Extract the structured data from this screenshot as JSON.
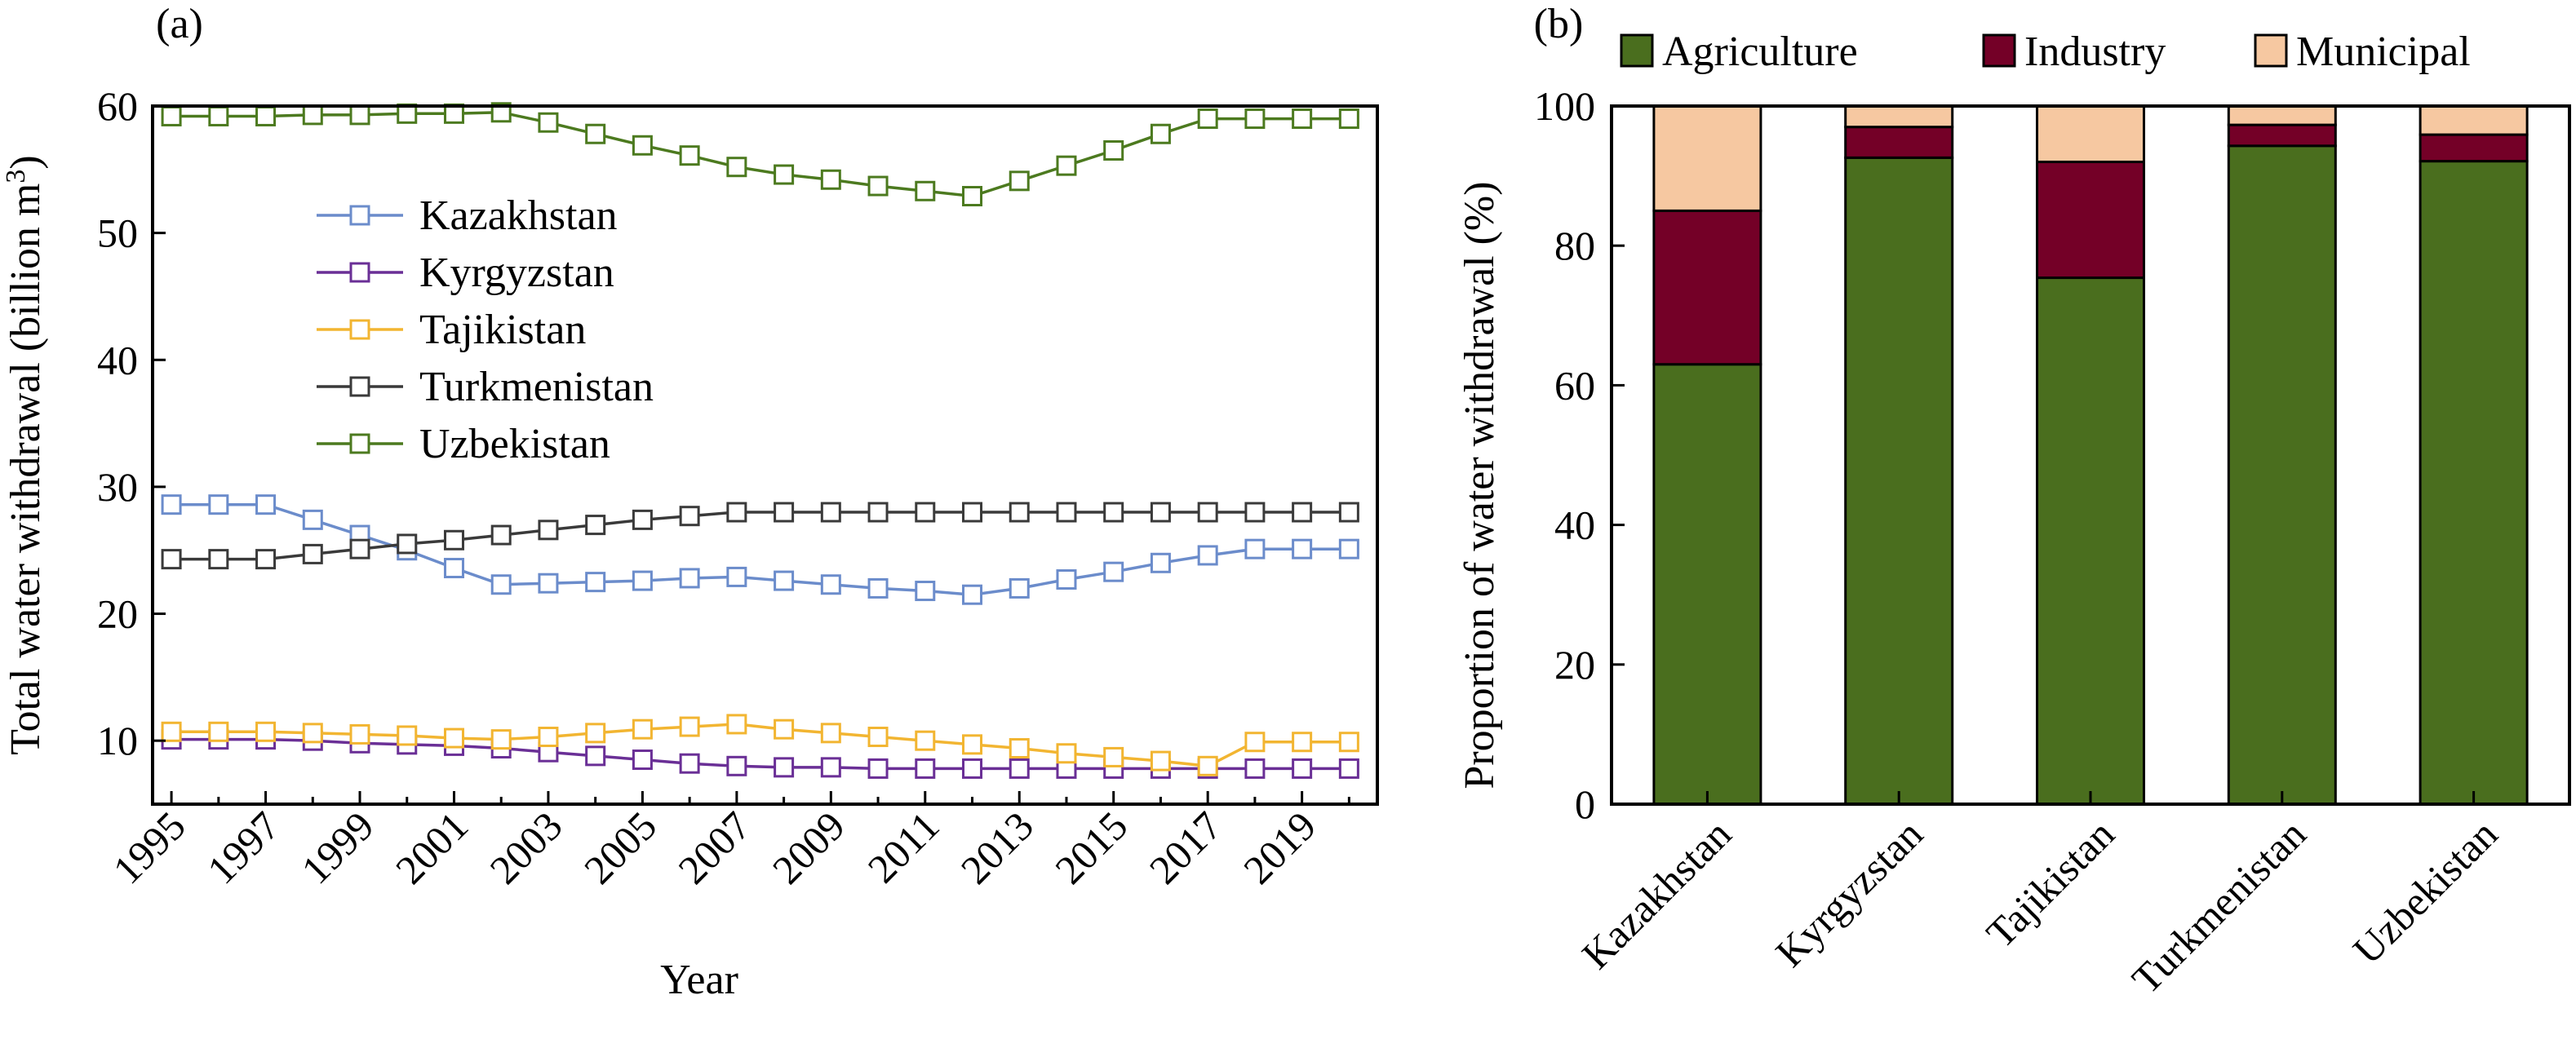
{
  "chart_data": [
    {
      "panel_label": "(a)",
      "type": "line",
      "xlabel": "Year",
      "ylabel": "Total water withdrawal (billion m³)",
      "ylabel_main": "Total water withdrawal (billion m",
      "ylabel_sup": "3",
      "ylabel_close": ")",
      "xlim": [
        1994.6,
        2020.6
      ],
      "ylim": [
        5,
        60
      ],
      "yticks": [
        10,
        20,
        30,
        40,
        50,
        60
      ],
      "xticks": [
        1995,
        1997,
        1999,
        2001,
        2003,
        2005,
        2007,
        2009,
        2011,
        2013,
        2015,
        2017,
        2019
      ],
      "xtick_labels": [
        "1995",
        "1997",
        "1999",
        "2001",
        "2003",
        "2005",
        "2007",
        "2009",
        "2011",
        "2013",
        "2015",
        "2017",
        "2019"
      ],
      "ytick_labels": [
        "10",
        "20",
        "30",
        "40",
        "50",
        "60"
      ],
      "marker": "open-square",
      "legend_placement": "upper-center",
      "grid": false,
      "x": [
        1995,
        1996,
        1997,
        1998,
        1999,
        2000,
        2001,
        2002,
        2003,
        2004,
        2005,
        2006,
        2007,
        2008,
        2009,
        2010,
        2011,
        2012,
        2013,
        2014,
        2015,
        2016,
        2017,
        2018,
        2019,
        2020
      ],
      "series": [
        {
          "name": "Kazakhstan",
          "color": "#6b8ccb",
          "values": [
            28.6,
            28.6,
            28.6,
            27.4,
            26.2,
            25.0,
            23.6,
            22.3,
            22.4,
            22.5,
            22.6,
            22.8,
            22.9,
            22.6,
            22.3,
            22.0,
            21.8,
            21.5,
            22.0,
            22.7,
            23.3,
            24.0,
            24.6,
            25.1,
            25.1,
            25.1
          ]
        },
        {
          "name": "Kyrgyzstan",
          "color": "#6a2f96",
          "values": [
            10.1,
            10.1,
            10.1,
            10.0,
            9.8,
            9.7,
            9.6,
            9.4,
            9.1,
            8.8,
            8.5,
            8.2,
            8.0,
            7.9,
            7.9,
            7.8,
            7.8,
            7.8,
            7.8,
            7.8,
            7.8,
            7.8,
            7.8,
            7.8,
            7.8,
            7.8
          ]
        },
        {
          "name": "Tajikistan",
          "color": "#f2b531",
          "values": [
            10.7,
            10.7,
            10.7,
            10.6,
            10.5,
            10.4,
            10.2,
            10.1,
            10.3,
            10.6,
            10.9,
            11.1,
            11.3,
            10.9,
            10.6,
            10.3,
            10.0,
            9.7,
            9.4,
            9.0,
            8.7,
            8.4,
            8.0,
            9.9,
            9.9,
            9.9
          ]
        },
        {
          "name": "Turkmenistan",
          "color": "#3a3a3a",
          "values": [
            24.3,
            24.3,
            24.3,
            24.7,
            25.1,
            25.5,
            25.8,
            26.2,
            26.6,
            27.0,
            27.4,
            27.7,
            28.0,
            28.0,
            28.0,
            28.0,
            28.0,
            28.0,
            28.0,
            28.0,
            28.0,
            28.0,
            28.0,
            28.0,
            28.0,
            28.0
          ]
        },
        {
          "name": "Uzbekistan",
          "color": "#4c7a1f",
          "values": [
            59.2,
            59.2,
            59.2,
            59.3,
            59.3,
            59.4,
            59.4,
            59.5,
            58.7,
            57.8,
            56.9,
            56.1,
            55.2,
            54.6,
            54.2,
            53.7,
            53.3,
            52.9,
            54.1,
            55.3,
            56.5,
            57.8,
            59.0,
            59.0,
            59.0,
            59.0
          ]
        }
      ]
    },
    {
      "panel_label": "(b)",
      "type": "bar",
      "stacked": true,
      "ylabel": "Proportion of water withdrawal (%)",
      "ylim": [
        0,
        100
      ],
      "yticks": [
        0,
        20,
        40,
        60,
        80,
        100
      ],
      "ytick_labels": [
        "0",
        "20",
        "40",
        "60",
        "80",
        "100"
      ],
      "legend_placement": "top",
      "grid": false,
      "categories": [
        "Kazakhstan",
        "Kyrgyzstan",
        "Tajikistan",
        "Turkmenistan",
        "Uzbekistan"
      ],
      "series": [
        {
          "name": "Agriculture",
          "color": "#4a6e1e",
          "values": [
            63,
            92.6,
            75.4,
            94.3,
            92.1
          ]
        },
        {
          "name": "Industry",
          "color": "#740027",
          "values": [
            22,
            4.4,
            16.6,
            3.0,
            3.8
          ]
        },
        {
          "name": "Municipal",
          "color": "#f6c8a1",
          "values": [
            15,
            3.0,
            8.0,
            2.7,
            4.1
          ]
        }
      ]
    }
  ]
}
